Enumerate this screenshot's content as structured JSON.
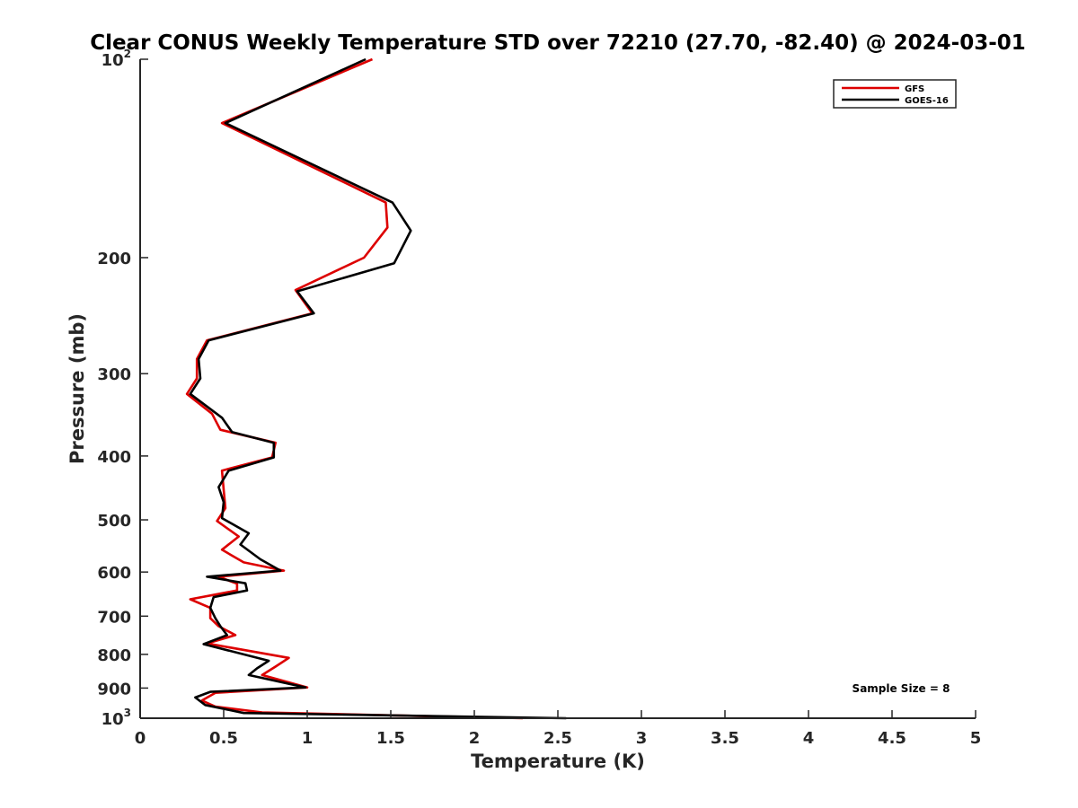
{
  "chart_data": {
    "type": "line",
    "title": "Clear CONUS Weekly Temperature STD over 72210 (27.70, -82.40) @ 2024-03-01",
    "xlabel": "Temperature (K)",
    "ylabel": "Pressure (mb)",
    "xlim": [
      0,
      5
    ],
    "ylim": [
      100,
      1000
    ],
    "y_scale": "log",
    "y_reversed": true,
    "grid": false,
    "legend_position": "top-right",
    "x_ticks": [
      "0",
      "0.5",
      "1",
      "1.5",
      "2",
      "2.5",
      "3",
      "3.5",
      "4",
      "4.5",
      "5"
    ],
    "y_ticks": [
      {
        "value": 100,
        "base": "10",
        "exp": "2"
      },
      {
        "value": 200,
        "label": "200"
      },
      {
        "value": 300,
        "label": "300"
      },
      {
        "value": 400,
        "label": "400"
      },
      {
        "value": 500,
        "label": "500"
      },
      {
        "value": 600,
        "label": "600"
      },
      {
        "value": 700,
        "label": "700"
      },
      {
        "value": 800,
        "label": "800"
      },
      {
        "value": 900,
        "label": "900"
      },
      {
        "value": 1000,
        "base": "10",
        "exp": "3"
      }
    ],
    "annotation": "Sample Size = 8",
    "series": [
      {
        "name": "GFS",
        "color": "#dd0000",
        "points": [
          [
            1.39,
            100
          ],
          [
            0.49,
            125
          ],
          [
            1.47,
            165
          ],
          [
            1.48,
            180
          ],
          [
            1.34,
            200
          ],
          [
            0.93,
            224
          ],
          [
            1.03,
            243
          ],
          [
            0.4,
            267
          ],
          [
            0.34,
            285
          ],
          [
            0.34,
            305
          ],
          [
            0.28,
            322
          ],
          [
            0.43,
            345
          ],
          [
            0.48,
            365
          ],
          [
            0.81,
            382
          ],
          [
            0.79,
            402
          ],
          [
            0.49,
            421
          ],
          [
            0.5,
            450
          ],
          [
            0.51,
            480
          ],
          [
            0.46,
            502
          ],
          [
            0.59,
            530
          ],
          [
            0.49,
            555
          ],
          [
            0.62,
            580
          ],
          [
            0.86,
            597
          ],
          [
            0.47,
            610
          ],
          [
            0.58,
            625
          ],
          [
            0.58,
            640
          ],
          [
            0.3,
            660
          ],
          [
            0.42,
            680
          ],
          [
            0.42,
            705
          ],
          [
            0.47,
            725
          ],
          [
            0.57,
            748
          ],
          [
            0.4,
            770
          ],
          [
            0.89,
            810
          ],
          [
            0.81,
            835
          ],
          [
            0.73,
            860
          ],
          [
            1.0,
            898
          ],
          [
            0.45,
            915
          ],
          [
            0.37,
            940
          ],
          [
            0.45,
            960
          ],
          [
            0.73,
            980
          ],
          [
            2.29,
            1000
          ]
        ]
      },
      {
        "name": "GOES-16",
        "color": "#000000",
        "points": [
          [
            1.35,
            100
          ],
          [
            0.51,
            125
          ],
          [
            1.51,
            165
          ],
          [
            1.62,
            182
          ],
          [
            1.52,
            204
          ],
          [
            0.94,
            225
          ],
          [
            1.04,
            243
          ],
          [
            0.41,
            267
          ],
          [
            0.35,
            285
          ],
          [
            0.36,
            305
          ],
          [
            0.3,
            322
          ],
          [
            0.49,
            350
          ],
          [
            0.55,
            368
          ],
          [
            0.8,
            382
          ],
          [
            0.8,
            402
          ],
          [
            0.53,
            421
          ],
          [
            0.47,
            446
          ],
          [
            0.5,
            470
          ],
          [
            0.49,
            497
          ],
          [
            0.65,
            524
          ],
          [
            0.6,
            545
          ],
          [
            0.72,
            574
          ],
          [
            0.84,
            597
          ],
          [
            0.4,
            610
          ],
          [
            0.63,
            624
          ],
          [
            0.64,
            640
          ],
          [
            0.44,
            655
          ],
          [
            0.42,
            680
          ],
          [
            0.45,
            705
          ],
          [
            0.48,
            725
          ],
          [
            0.52,
            748
          ],
          [
            0.38,
            772
          ],
          [
            0.77,
            818
          ],
          [
            0.7,
            840
          ],
          [
            0.65,
            860
          ],
          [
            0.99,
            898
          ],
          [
            0.42,
            912
          ],
          [
            0.33,
            930
          ],
          [
            0.39,
            955
          ],
          [
            0.62,
            982
          ],
          [
            2.55,
            1000
          ]
        ]
      }
    ]
  }
}
